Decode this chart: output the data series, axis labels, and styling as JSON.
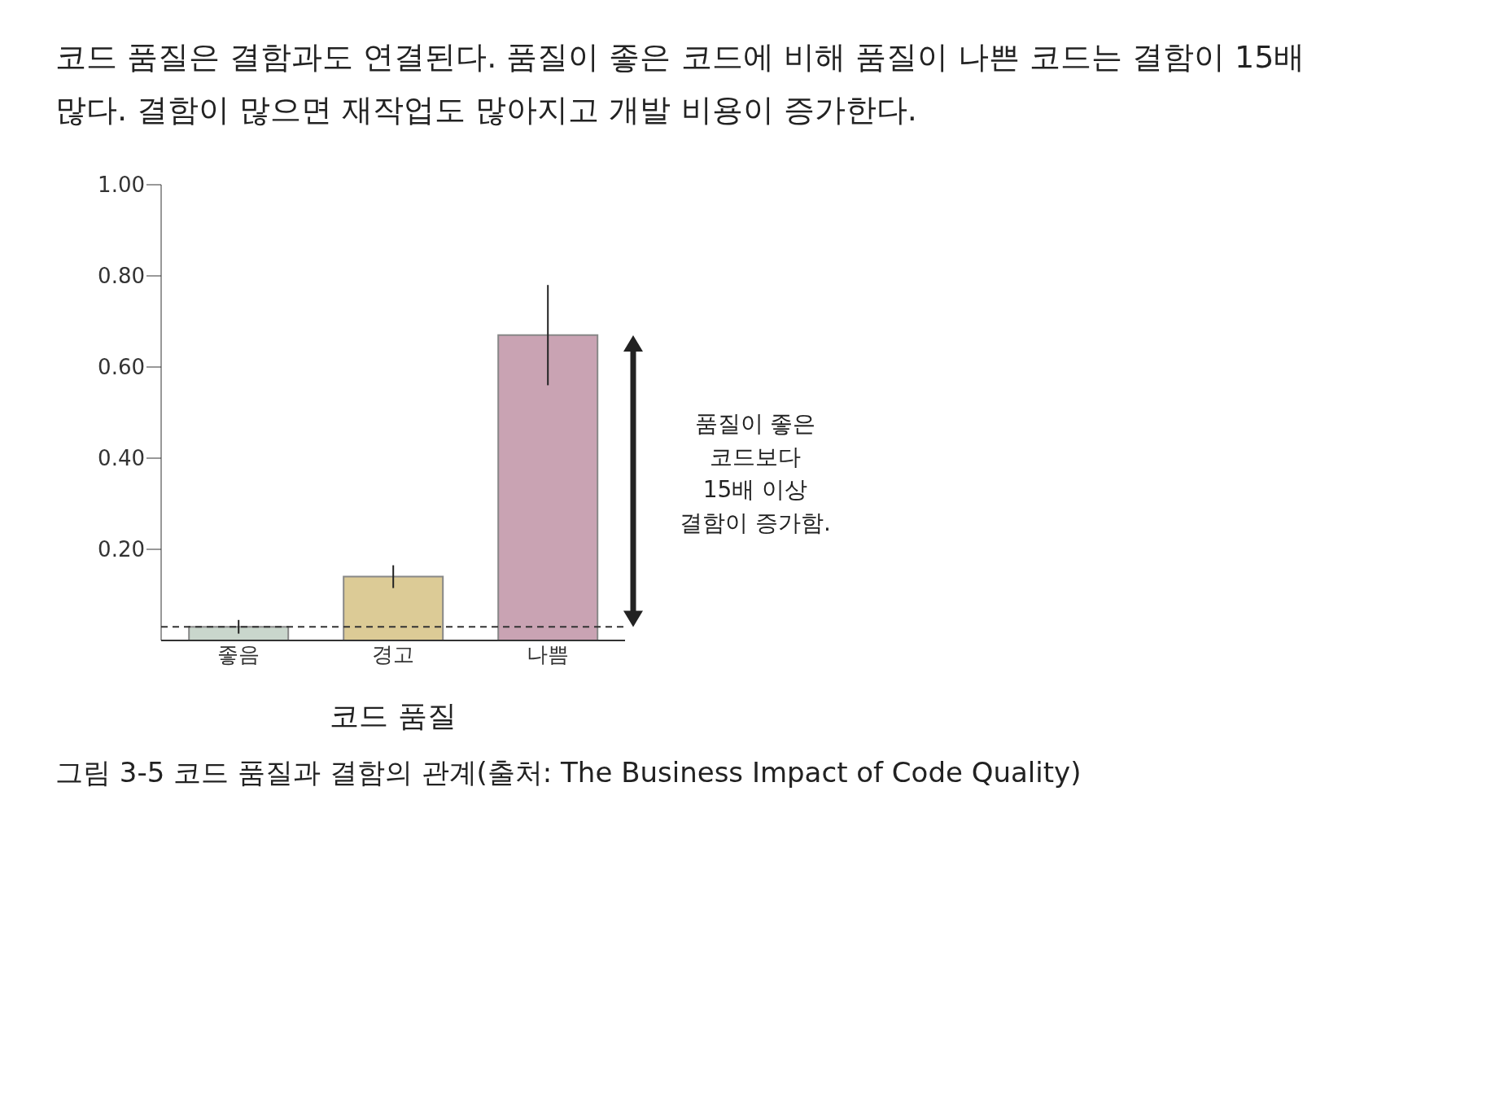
{
  "chart_data": {
    "type": "bar",
    "title": "그림 3-5 코드 품질과 결함의 관계(출처: The Business Impact of Code Quality)",
    "xlabel": "코드 품질",
    "annotations": [
      "코드 품질은 결함과도 연결된다. 품질이 좋은 코드에 비해 품질이 나쁜 코드는 결함이 15배 많다. 결함이 많으면 재작업도 많아지고 개발 비용이 증가한다.",
      "품질이 좋은\n코드보다\n15배 이상\n결함이 증가함."
    ],
    "categories": [
      "좋음",
      "경고",
      "나쁨"
    ],
    "values": [
      0.03,
      0.14,
      0.67
    ],
    "errors": [
      0.015,
      0.025,
      0.11
    ],
    "colors": [
      "#c9d6cc",
      "#dccb96",
      "#c9a3b3"
    ],
    "ylim": [
      0,
      1.0
    ],
    "yticks": [
      {
        "value": 0.2,
        "label": "0.20"
      },
      {
        "value": 0.4,
        "label": "0.40"
      },
      {
        "value": 0.6,
        "label": "0.60"
      },
      {
        "value": 0.8,
        "label": "0.80"
      },
      {
        "value": 1.0,
        "label": "1.00"
      }
    ],
    "ref_lines": [
      {
        "axis": "y",
        "value": 0.03,
        "label": null,
        "line_style": "dashed",
        "color": "#333333"
      }
    ]
  }
}
